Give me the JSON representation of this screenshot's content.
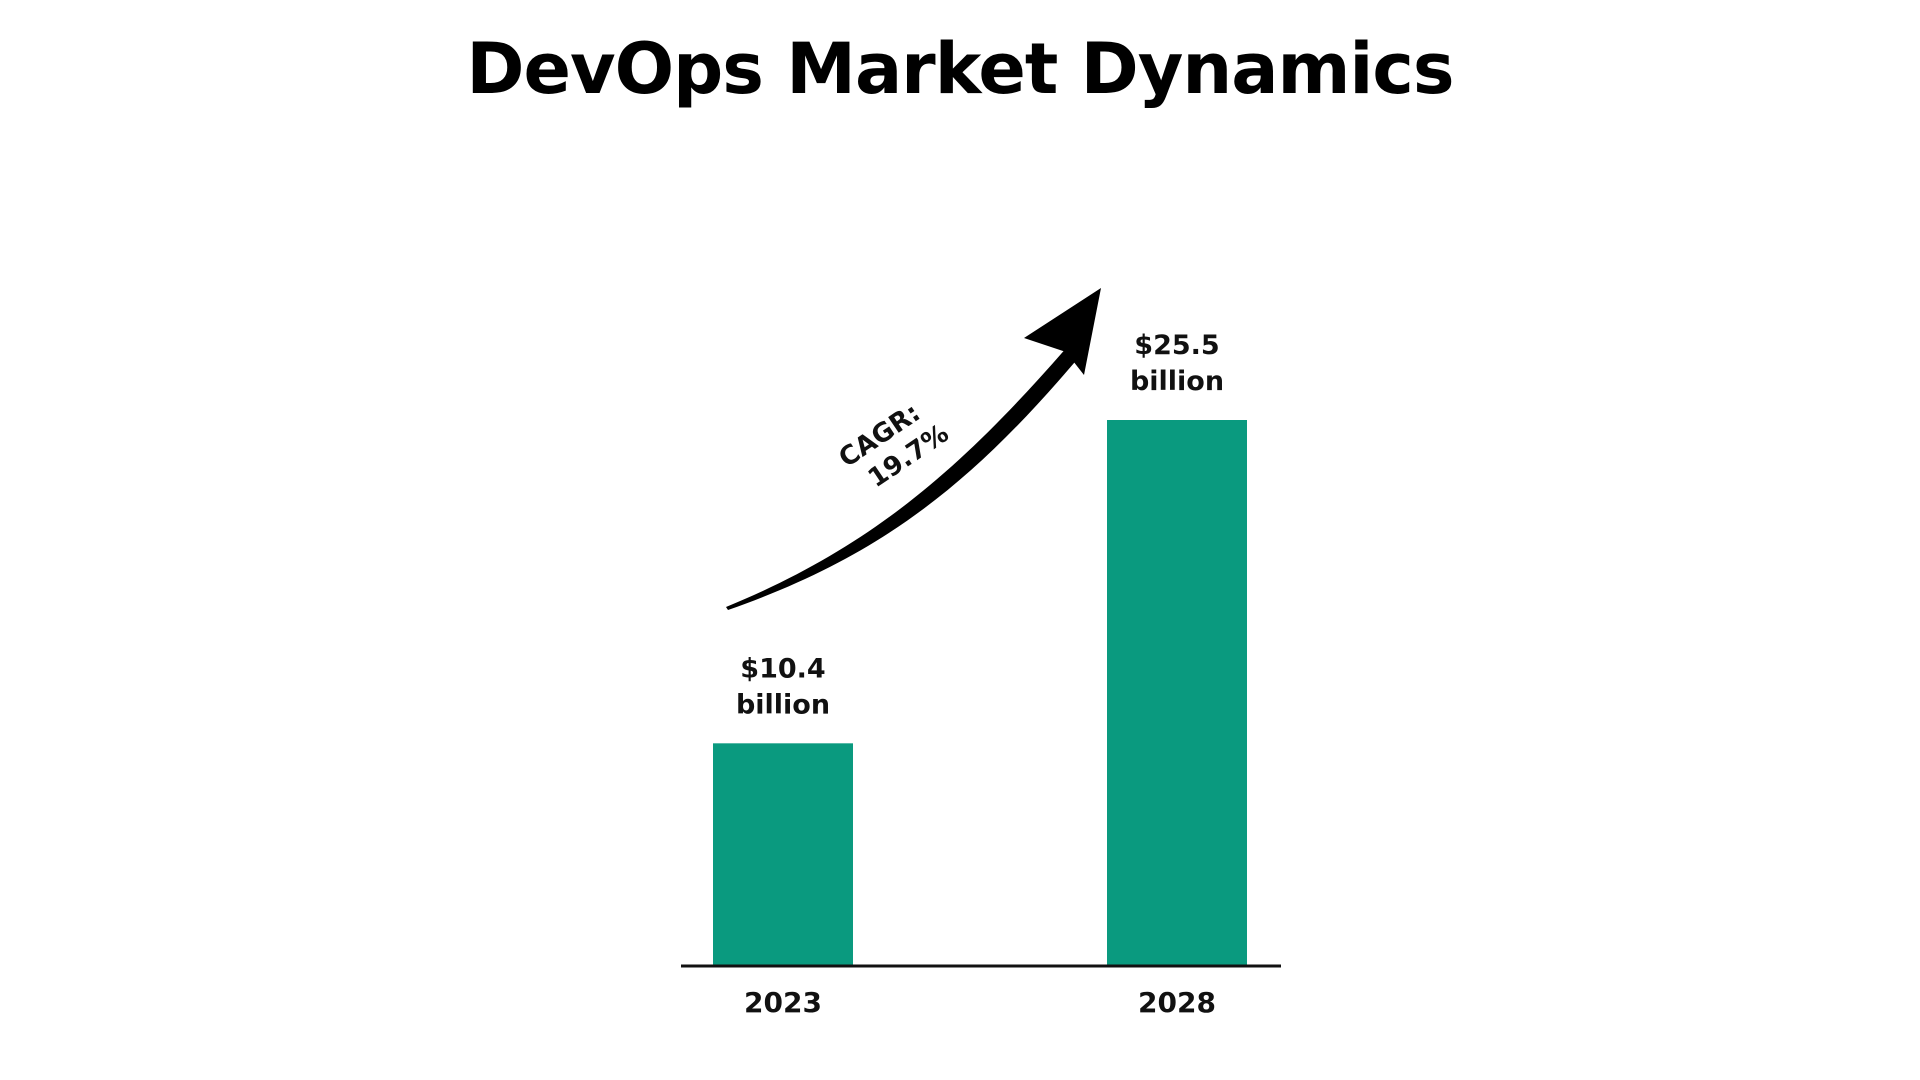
{
  "chart_data": {
    "type": "bar",
    "title": "DevOps Market Dynamics",
    "categories": [
      "2023",
      "2028"
    ],
    "values": [
      10.4,
      25.5
    ],
    "value_labels": [
      [
        "$10.4",
        "billion"
      ],
      [
        "$25.5",
        "billion"
      ]
    ],
    "xlabel": "",
    "ylabel": "",
    "ylim": [
      0,
      30
    ],
    "grid": false,
    "legend": "none",
    "bar_color": "#0a9a7f",
    "annotation": {
      "lines": [
        "CAGR:",
        "19.7%"
      ],
      "arrow": "curved-up-right"
    }
  }
}
